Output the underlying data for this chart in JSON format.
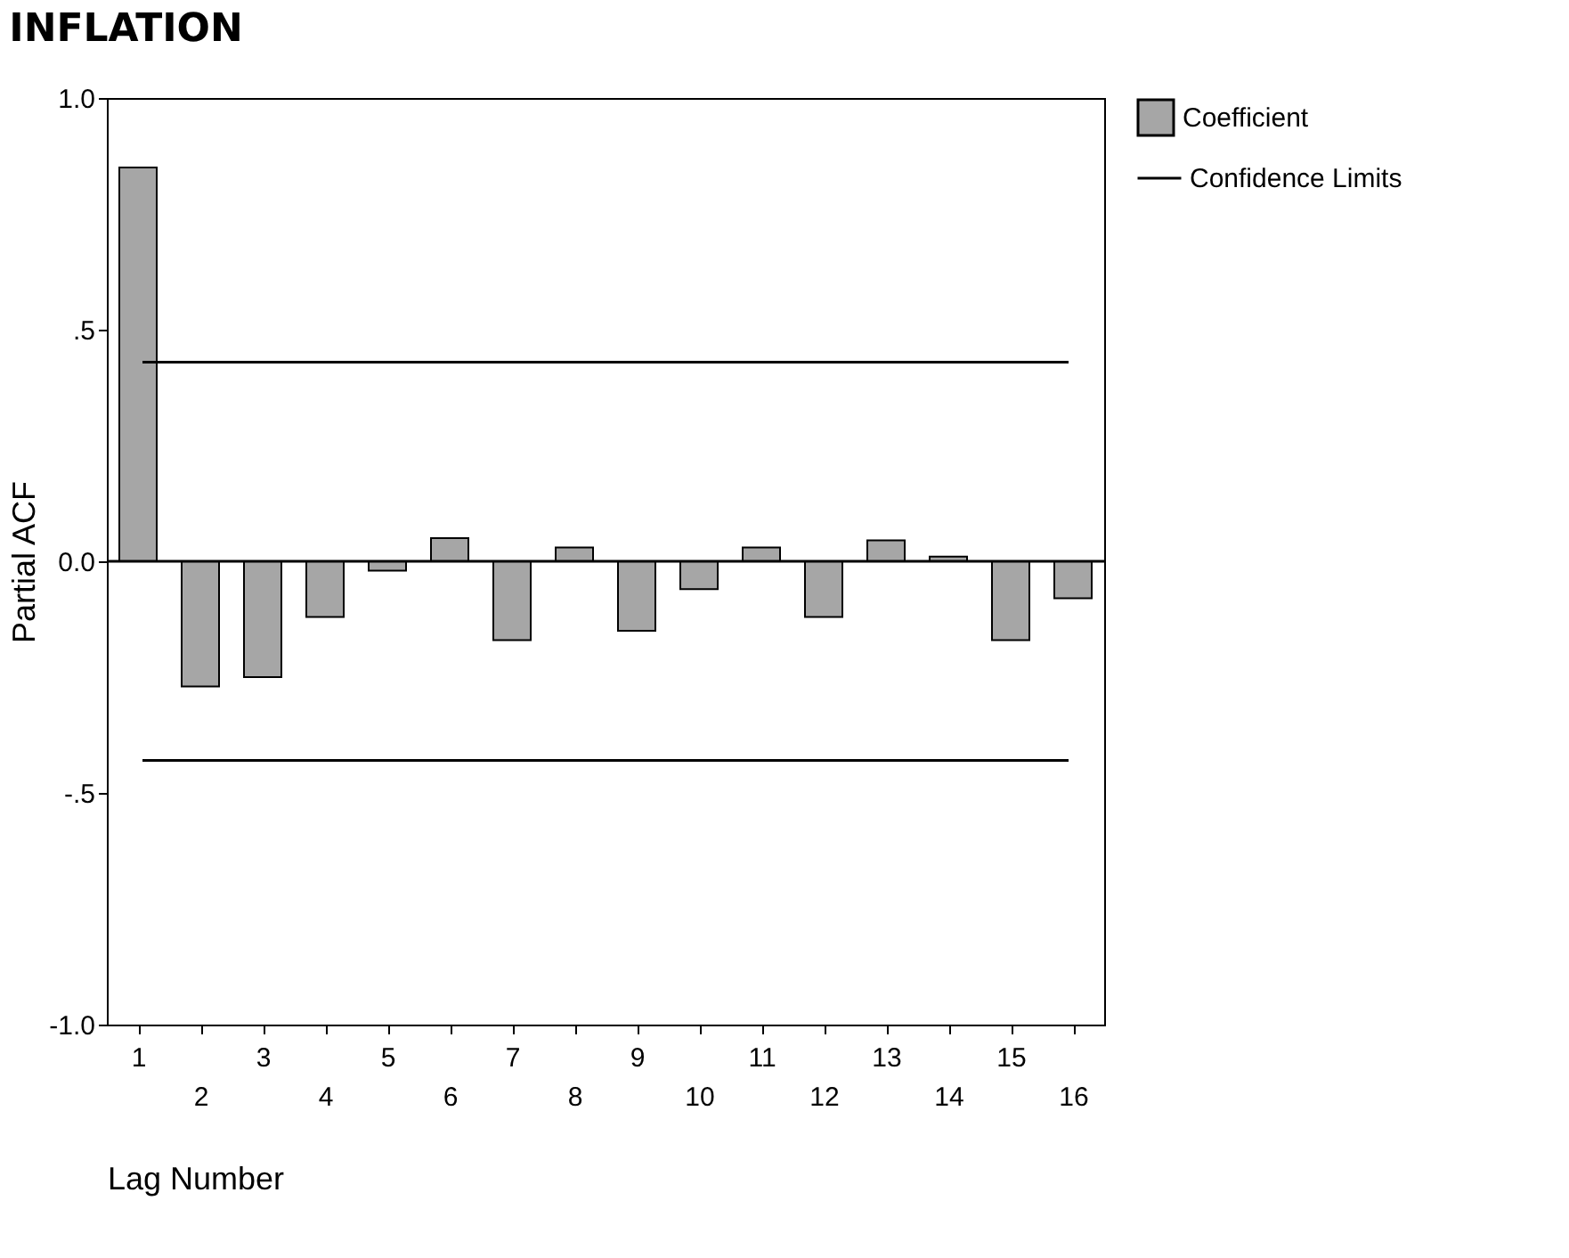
{
  "chart_data": {
    "type": "bar",
    "title": "INFLATION",
    "xlabel": "Lag Number",
    "ylabel": "Partial ACF",
    "categories": [
      "1",
      "2",
      "3",
      "4",
      "5",
      "6",
      "7",
      "8",
      "9",
      "10",
      "11",
      "12",
      "13",
      "14",
      "15",
      "16"
    ],
    "series": [
      {
        "name": "Coefficient",
        "color": "#a6a6a6",
        "values": [
          0.85,
          -0.27,
          -0.25,
          -0.12,
          -0.02,
          0.05,
          -0.17,
          0.03,
          -0.15,
          -0.06,
          0.03,
          -0.12,
          0.045,
          0.01,
          -0.17,
          -0.08
        ]
      }
    ],
    "ylim": [
      -1.0,
      1.0
    ],
    "yticks": [
      {
        "value": -1.0,
        "label": "-1.0"
      },
      {
        "value": -0.5,
        "label": "-.5"
      },
      {
        "value": 0.0,
        "label": "0.0"
      },
      {
        "value": 0.5,
        "label": ".5"
      },
      {
        "value": 1.0,
        "label": "1.0"
      }
    ],
    "ref_lines": [
      {
        "axis": "y",
        "value": 0.43,
        "label": "Confidence Limits",
        "color": "#000000"
      },
      {
        "axis": "y",
        "value": -0.43,
        "label": null,
        "color": "#000000"
      },
      {
        "axis": "y",
        "value": 0.0,
        "label": null,
        "color": "#000000"
      }
    ],
    "grid": false,
    "legend": "right"
  }
}
